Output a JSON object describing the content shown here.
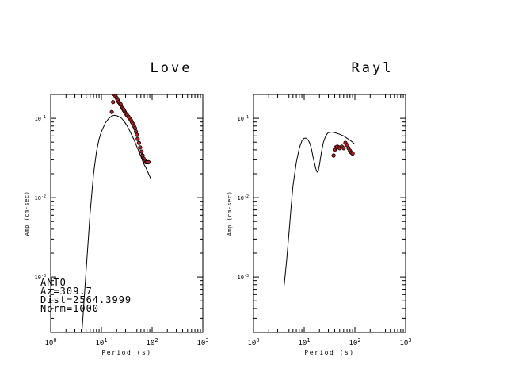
{
  "chart_data": [
    {
      "type": "scatter",
      "title": "Love",
      "xlabel": "Period (s)",
      "ylabel": "Amp (cm-sec)",
      "xscale": "log",
      "yscale": "log",
      "xlim": [
        1,
        1000
      ],
      "ylim": [
        0.0002,
        0.2
      ],
      "xticks": [
        {
          "label": "10",
          "exp": "0",
          "value": 1
        },
        {
          "label": "10",
          "exp": "1",
          "value": 10
        },
        {
          "label": "10",
          "exp": "2",
          "value": 100
        },
        {
          "label": "10",
          "exp": "3",
          "value": 1000
        }
      ],
      "yticks": [
        {
          "label": "10",
          "exp": "-1",
          "value": 0.1
        },
        {
          "label": "10",
          "exp": "-2",
          "value": 0.01
        },
        {
          "label": "10",
          "exp": "-3",
          "value": 0.001
        }
      ],
      "annotation": [
        "ANTO",
        "Az=309.7",
        "Dist=2564.3999",
        "Norm=1000"
      ],
      "series": [
        {
          "kind": "line",
          "x": [
            4,
            5,
            6,
            7,
            8,
            9,
            10,
            12,
            14,
            16,
            18,
            20,
            22,
            25,
            28,
            32,
            36,
            40,
            45,
            50,
            55,
            60,
            65,
            70,
            75,
            80,
            85,
            90,
            95
          ],
          "y": [
            0.00015,
            0.0012,
            0.0065,
            0.02,
            0.038,
            0.055,
            0.068,
            0.088,
            0.1,
            0.107,
            0.109,
            0.108,
            0.105,
            0.1,
            0.092,
            0.081,
            0.07,
            0.061,
            0.052,
            0.044,
            0.038,
            0.033,
            0.029,
            0.026,
            0.024,
            0.022,
            0.02,
            0.0185,
            0.017
          ]
        },
        {
          "kind": "points",
          "x": [
            16,
            17,
            18,
            19,
            20,
            21,
            22,
            23,
            24,
            25,
            26,
            27,
            28,
            29,
            30,
            32,
            34,
            36,
            38,
            40,
            42,
            44,
            46,
            48,
            50,
            52,
            55,
            58,
            62,
            65,
            68,
            72,
            76,
            80,
            85
          ],
          "y": [
            0.12,
            0.16,
            0.2,
            0.19,
            0.18,
            0.17,
            0.16,
            0.155,
            0.15,
            0.14,
            0.135,
            0.13,
            0.125,
            0.12,
            0.115,
            0.11,
            0.105,
            0.1,
            0.095,
            0.09,
            0.085,
            0.08,
            0.075,
            0.068,
            0.062,
            0.055,
            0.049,
            0.043,
            0.038,
            0.034,
            0.031,
            0.029,
            0.028,
            0.028,
            0.028
          ]
        }
      ]
    },
    {
      "type": "scatter",
      "title": "Rayl",
      "xlabel": "Period (s)",
      "ylabel": "Amp (cm-sec)",
      "xscale": "log",
      "yscale": "log",
      "xlim": [
        1,
        1000
      ],
      "ylim": [
        0.0002,
        0.2
      ],
      "xticks": [
        {
          "label": "10",
          "exp": "0",
          "value": 1
        },
        {
          "label": "10",
          "exp": "1",
          "value": 10
        },
        {
          "label": "10",
          "exp": "2",
          "value": 100
        },
        {
          "label": "10",
          "exp": "3",
          "value": 1000
        }
      ],
      "yticks": [
        {
          "label": "10",
          "exp": "-1",
          "value": 0.1
        },
        {
          "label": "10",
          "exp": "-2",
          "value": 0.01
        },
        {
          "label": "10",
          "exp": "-3",
          "value": 0.001
        }
      ],
      "annotation": [],
      "series": [
        {
          "kind": "line",
          "x": [
            4,
            4.5,
            5,
            5.5,
            6,
            7,
            8,
            9,
            10,
            11,
            12,
            13,
            14,
            15,
            16,
            17,
            18,
            19,
            20,
            22,
            24,
            26,
            28,
            30,
            35,
            40,
            50,
            60,
            70,
            80,
            90,
            100
          ],
          "y": [
            0.00075,
            0.0016,
            0.0035,
            0.0075,
            0.014,
            0.028,
            0.042,
            0.052,
            0.056,
            0.056,
            0.053,
            0.048,
            0.04,
            0.032,
            0.027,
            0.023,
            0.021,
            0.022,
            0.026,
            0.038,
            0.05,
            0.058,
            0.063,
            0.066,
            0.067,
            0.066,
            0.063,
            0.06,
            0.056,
            0.053,
            0.05,
            0.047
          ]
        },
        {
          "kind": "points",
          "x": [
            38,
            40,
            42,
            45,
            48,
            50,
            55,
            60,
            65,
            70,
            75,
            80,
            85,
            90
          ],
          "y": [
            0.034,
            0.04,
            0.043,
            0.044,
            0.043,
            0.042,
            0.044,
            0.042,
            0.049,
            0.046,
            0.042,
            0.039,
            0.037,
            0.036
          ]
        }
      ]
    }
  ]
}
